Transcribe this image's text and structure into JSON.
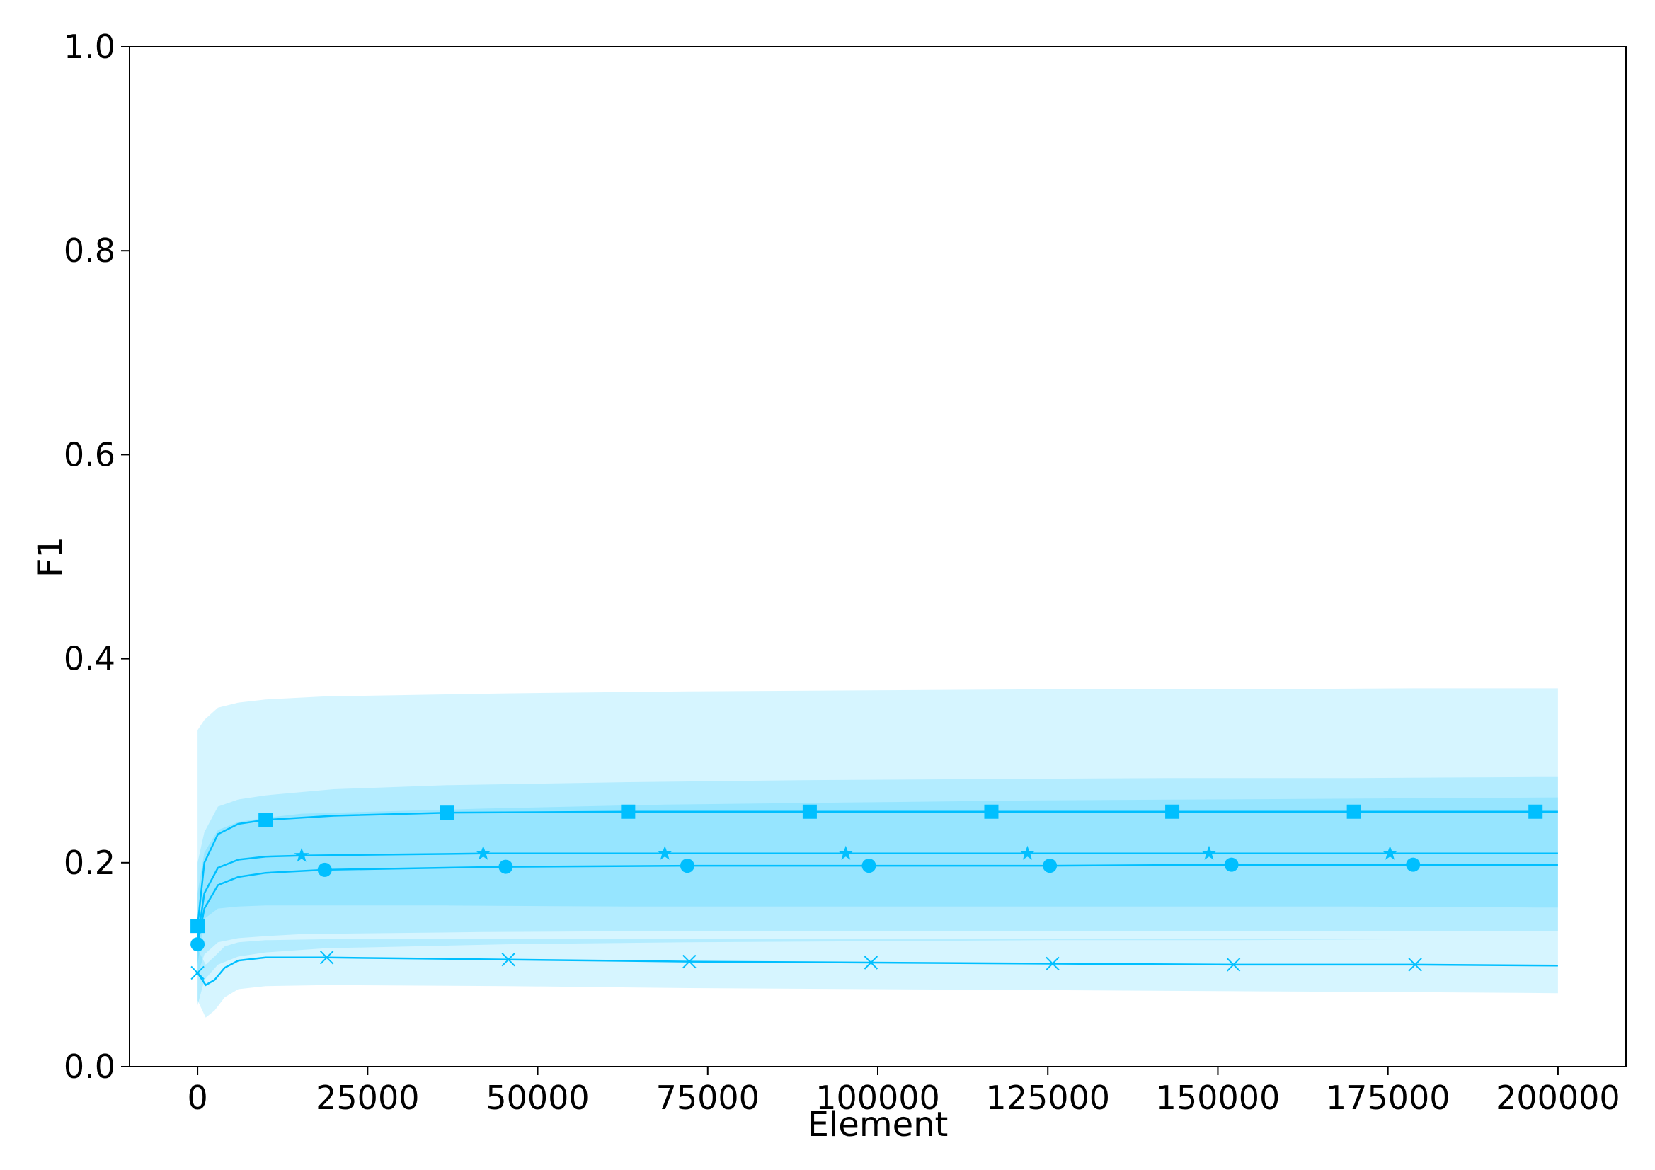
{
  "chart_data": {
    "type": "line",
    "title": "",
    "xlabel": "Element",
    "ylabel": "F1",
    "xlim": [
      -10000,
      210000
    ],
    "ylim": [
      0,
      1.0
    ],
    "xticks": [
      0,
      25000,
      50000,
      75000,
      100000,
      125000,
      150000,
      175000,
      200000
    ],
    "xtick_labels": [
      "0",
      "25000",
      "50000",
      "75000",
      "100000",
      "125000",
      "150000",
      "175000",
      "200000"
    ],
    "yticks": [
      0.0,
      0.2,
      0.4,
      0.6,
      0.8,
      1.0
    ],
    "ytick_labels": [
      "0.0",
      "0.2",
      "0.4",
      "0.6",
      "0.8",
      "1.0"
    ],
    "grid": false,
    "color": "#00bfff",
    "series": [
      {
        "name": "square",
        "marker": "square",
        "x": [
          0,
          1000,
          3000,
          6000,
          10000,
          20000,
          36700,
          63300,
          90000,
          116700,
          143300,
          170000,
          196700,
          200000
        ],
        "values": [
          0.138,
          0.2,
          0.228,
          0.238,
          0.242,
          0.246,
          0.249,
          0.25,
          0.25,
          0.25,
          0.25,
          0.25,
          0.25,
          0.25
        ],
        "band_upper": [
          0.2,
          0.23,
          0.255,
          0.262,
          0.266,
          0.272,
          0.276,
          0.279,
          0.281,
          0.282,
          0.283,
          0.283,
          0.284,
          0.284
        ],
        "band_lower": [
          0.1,
          0.145,
          0.155,
          0.157,
          0.158,
          0.158,
          0.158,
          0.157,
          0.157,
          0.157,
          0.157,
          0.157,
          0.156,
          0.156
        ],
        "marker_x": [
          0,
          10000,
          36700,
          63300,
          90000,
          116700,
          143300,
          170000,
          196700
        ]
      },
      {
        "name": "star",
        "marker": "star",
        "x": [
          0,
          1000,
          3000,
          6000,
          10000,
          15300,
          42000,
          68700,
          95300,
          122000,
          148700,
          175300,
          200000
        ],
        "values": [
          0.125,
          0.17,
          0.195,
          0.203,
          0.206,
          0.207,
          0.209,
          0.209,
          0.209,
          0.209,
          0.209,
          0.209,
          0.209
        ],
        "band_upper": [
          0.17,
          0.21,
          0.232,
          0.24,
          0.244,
          0.248,
          0.253,
          0.257,
          0.259,
          0.261,
          0.262,
          0.263,
          0.264
        ],
        "band_lower": [
          0.09,
          0.11,
          0.122,
          0.126,
          0.128,
          0.13,
          0.132,
          0.133,
          0.133,
          0.133,
          0.133,
          0.133,
          0.133
        ],
        "marker_x": [
          15300,
          42000,
          68700,
          95300,
          122000,
          148700,
          175300
        ]
      },
      {
        "name": "circle",
        "marker": "circle",
        "x": [
          0,
          1000,
          3000,
          6000,
          10000,
          18700,
          45300,
          72000,
          98700,
          125300,
          152000,
          178700,
          200000
        ],
        "values": [
          0.12,
          0.155,
          0.178,
          0.186,
          0.19,
          0.193,
          0.196,
          0.197,
          0.197,
          0.197,
          0.198,
          0.198,
          0.198
        ],
        "band_upper": [
          0.33,
          0.34,
          0.352,
          0.357,
          0.36,
          0.363,
          0.366,
          0.368,
          0.369,
          0.37,
          0.37,
          0.371,
          0.371
        ],
        "band_lower": [
          0.06,
          0.085,
          0.1,
          0.108,
          0.112,
          0.116,
          0.12,
          0.122,
          0.123,
          0.124,
          0.124,
          0.125,
          0.125
        ],
        "marker_x": [
          0,
          18700,
          45300,
          72000,
          98700,
          125300,
          152000,
          178700
        ]
      },
      {
        "name": "x",
        "marker": "x",
        "x": [
          0,
          1200,
          2500,
          4000,
          6000,
          10000,
          19000,
          45700,
          72300,
          99000,
          125700,
          152300,
          179000,
          200000
        ],
        "values": [
          0.092,
          0.08,
          0.085,
          0.097,
          0.104,
          0.107,
          0.107,
          0.105,
          0.103,
          0.102,
          0.101,
          0.1,
          0.1,
          0.099
        ],
        "band_upper": [
          0.115,
          0.1,
          0.108,
          0.118,
          0.122,
          0.124,
          0.125,
          0.125,
          0.125,
          0.125,
          0.125,
          0.125,
          0.125,
          0.125
        ],
        "band_lower": [
          0.065,
          0.048,
          0.055,
          0.068,
          0.076,
          0.079,
          0.08,
          0.079,
          0.077,
          0.076,
          0.075,
          0.074,
          0.073,
          0.072
        ],
        "marker_x": [
          0,
          19000,
          45700,
          72300,
          99000,
          125700,
          152300,
          179000
        ]
      }
    ]
  }
}
